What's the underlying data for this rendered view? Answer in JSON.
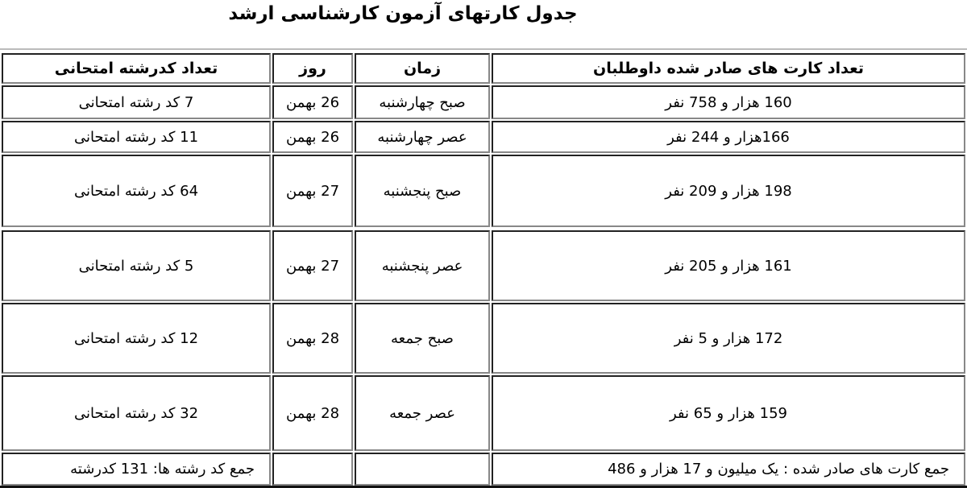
{
  "title": "جدول کارتهای آزمون کارشناسی ارشد",
  "headers": [
    "تعداد کارت های صادر شده داوطلبان",
    "زمان",
    "روز",
    "تعداد کدرشته امتحانی"
  ],
  "rows": [
    [
      "160 هزار و  758 نفر",
      "صبح چهارشنبه",
      "26 بهمن",
      "7 کد رشته امتحانی"
    ],
    [
      "166هزار و 244 نفر",
      "عصر چهارشنبه",
      "26 بهمن",
      "11 کد رشته امتحانی"
    ],
    [
      "198 هزار و 209  نفر",
      "صبح پنجشنبه",
      "27 بهمن",
      "64 کد رشته امتحانی"
    ],
    [
      "161 هزار و 205 نفر",
      "عصر پنجشنبه",
      "27 بهمن",
      "5 کد رشته امتحانی"
    ],
    [
      "172 هزار و 5 نفر",
      "صبح جمعه",
      "28 بهمن",
      "12 کد رشته امتحانی"
    ],
    [
      "159 هزار و 65 نفر",
      "عصر جمعه",
      "28 بهمن",
      "32 کد رشته امتحانی"
    ]
  ],
  "totals": {
    "cards": "جمع کارت های صادر شده : یک میلیون و 17 هزار و 486",
    "codes": "جمع کد رشته ها: 131 کدرشته"
  }
}
